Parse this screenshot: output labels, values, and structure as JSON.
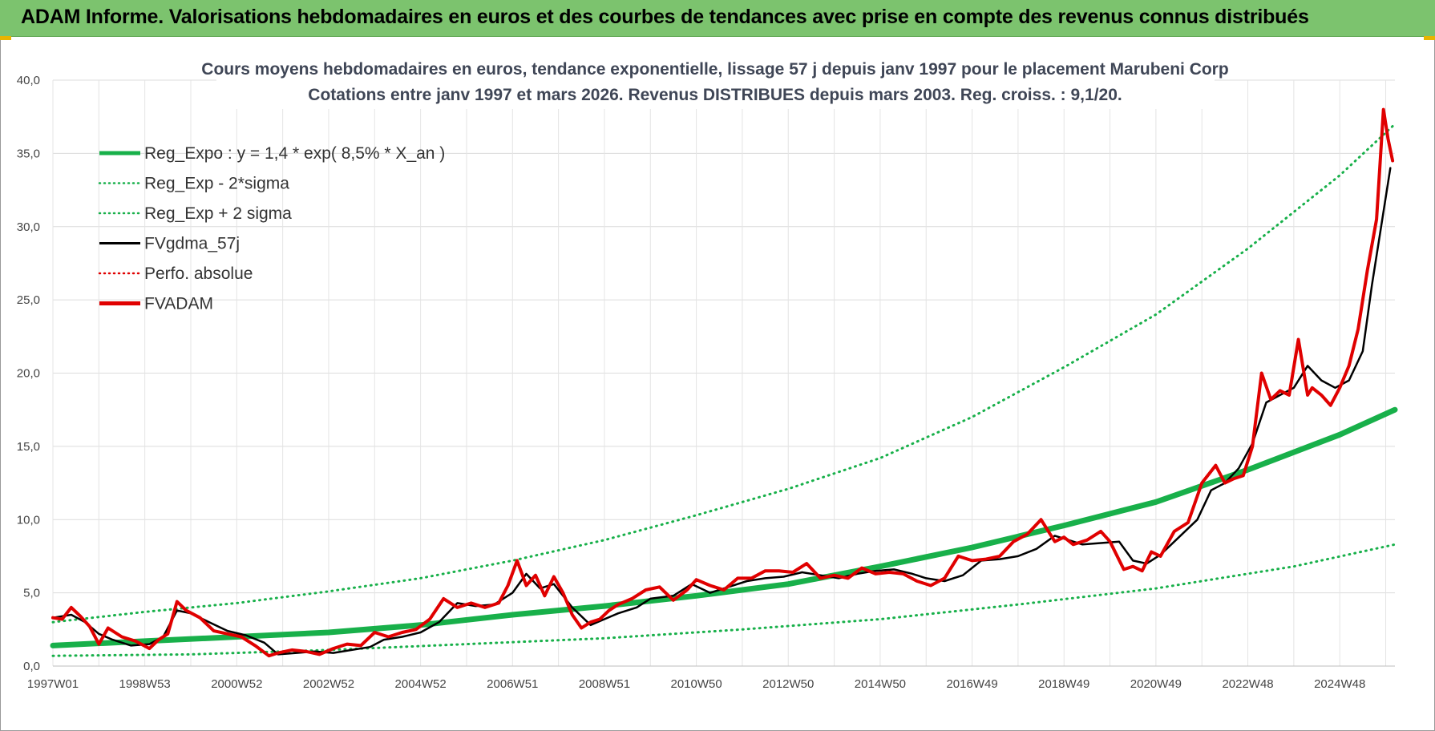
{
  "banner": {
    "title": "ADAM Informe. Valorisations hebdomadaires en euros et des courbes de tendances avec prise en compte des revenus connus distribués",
    "color": "#7cc36e"
  },
  "chart_data": {
    "type": "line",
    "title_line1": "Cours moyens hebdomadaires en euros, tendance exponentielle, lissage 57 j depuis janv 1997  pour le placement Marubeni Corp",
    "title_line2": "Cotations entre janv 1997 et mars 2026. Revenus DISTRIBUES depuis mars 2003.  Reg. croiss. : 9,1/20.",
    "xlabel": "",
    "ylabel": "",
    "ylim": [
      0,
      40
    ],
    "xlim": [
      1997.0,
      2026.2
    ],
    "y_ticks": [
      "0,0",
      "5,0",
      "10,0",
      "15,0",
      "20,0",
      "25,0",
      "30,0",
      "35,0",
      "40,0"
    ],
    "x_ticks": [
      {
        "label": "1997W01",
        "x": 1997.0
      },
      {
        "label": "1998W53",
        "x": 1999.0
      },
      {
        "label": "2000W52",
        "x": 2001.0
      },
      {
        "label": "2002W52",
        "x": 2003.0
      },
      {
        "label": "2004W52",
        "x": 2005.0
      },
      {
        "label": "2006W51",
        "x": 2007.0
      },
      {
        "label": "2008W51",
        "x": 2009.0
      },
      {
        "label": "2010W50",
        "x": 2011.0
      },
      {
        "label": "2012W50",
        "x": 2013.0
      },
      {
        "label": "2014W50",
        "x": 2015.0
      },
      {
        "label": "2016W49",
        "x": 2017.0
      },
      {
        "label": "2018W49",
        "x": 2019.0
      },
      {
        "label": "2020W49",
        "x": 2021.0
      },
      {
        "label": "2022W48",
        "x": 2023.0
      },
      {
        "label": "2024W48",
        "x": 2025.0
      }
    ],
    "grid": true,
    "legend_position": "top-left",
    "series": [
      {
        "name": "Reg_Expo : y = 1,4 * exp( 8,5% *  X_an )",
        "color": "#18b04a",
        "style": "solid-thick",
        "x": [
          1997.0,
          1999.0,
          2001.0,
          2003.0,
          2005.0,
          2007.0,
          2009.0,
          2011.0,
          2013.0,
          2015.0,
          2017.0,
          2019.0,
          2021.0,
          2023.0,
          2025.0,
          2026.2
        ],
        "y": [
          1.4,
          1.7,
          2.0,
          2.3,
          2.8,
          3.5,
          4.1,
          4.8,
          5.6,
          6.8,
          8.1,
          9.6,
          11.2,
          13.4,
          15.8,
          17.5
        ]
      },
      {
        "name": "Reg_Exp - 2*sigma",
        "color": "#18b04a",
        "style": "dotted",
        "x": [
          1997.0,
          2000.0,
          2003.0,
          2006.0,
          2009.0,
          2012.0,
          2015.0,
          2018.0,
          2021.0,
          2024.0,
          2026.2
        ],
        "y": [
          0.7,
          0.8,
          1.1,
          1.5,
          1.9,
          2.5,
          3.2,
          4.2,
          5.3,
          6.8,
          8.3
        ]
      },
      {
        "name": "Reg_Exp + 2 sigma",
        "color": "#18b04a",
        "style": "dotted",
        "x": [
          1997.0,
          1999.0,
          2001.0,
          2003.0,
          2005.0,
          2007.0,
          2009.0,
          2011.0,
          2013.0,
          2015.0,
          2017.0,
          2019.0,
          2021.0,
          2023.0,
          2025.0,
          2026.2
        ],
        "y": [
          3.0,
          3.7,
          4.3,
          5.1,
          6.0,
          7.2,
          8.6,
          10.3,
          12.1,
          14.2,
          17.0,
          20.4,
          24.0,
          28.5,
          33.5,
          37.0
        ]
      },
      {
        "name": "FVgdma_57j",
        "color": "#000000",
        "style": "solid",
        "x": [
          1997.0,
          1997.4,
          1997.7,
          1998.0,
          1998.3,
          1998.7,
          1999.1,
          1999.4,
          1999.7,
          2000.0,
          2000.4,
          2000.8,
          2001.2,
          2001.6,
          2001.9,
          2002.3,
          2002.7,
          2003.1,
          2003.5,
          2003.9,
          2004.2,
          2004.6,
          2005.0,
          2005.4,
          2005.8,
          2006.2,
          2006.6,
          2007.0,
          2007.3,
          2007.6,
          2007.9,
          2008.3,
          2008.7,
          2009.0,
          2009.3,
          2009.7,
          2010.0,
          2010.5,
          2010.9,
          2011.3,
          2011.7,
          2012.1,
          2012.5,
          2012.9,
          2013.3,
          2013.7,
          2014.1,
          2014.5,
          2014.9,
          2015.3,
          2015.7,
          2016.0,
          2016.4,
          2016.8,
          2017.2,
          2017.6,
          2018.0,
          2018.4,
          2018.8,
          2019.1,
          2019.4,
          2019.8,
          2020.2,
          2020.5,
          2020.8,
          2021.1,
          2021.5,
          2021.9,
          2022.2,
          2022.5,
          2022.8,
          2023.1,
          2023.4,
          2023.7,
          2024.0,
          2024.3,
          2024.6,
          2024.9,
          2025.2,
          2025.5,
          2025.7,
          2025.9,
          2026.1
        ],
        "y": [
          3.3,
          3.5,
          3.0,
          2.2,
          1.8,
          1.4,
          1.5,
          2.0,
          3.8,
          3.6,
          3.0,
          2.4,
          2.1,
          1.6,
          0.8,
          0.9,
          1.0,
          0.9,
          1.1,
          1.3,
          1.8,
          2.0,
          2.3,
          3.0,
          4.3,
          4.1,
          4.2,
          5.0,
          6.3,
          5.3,
          5.6,
          4.0,
          2.8,
          3.2,
          3.6,
          4.0,
          4.6,
          4.8,
          5.6,
          5.0,
          5.4,
          5.8,
          6.0,
          6.1,
          6.4,
          6.2,
          6.0,
          6.3,
          6.5,
          6.6,
          6.3,
          6.0,
          5.8,
          6.2,
          7.2,
          7.3,
          7.5,
          8.0,
          8.9,
          8.6,
          8.3,
          8.4,
          8.5,
          7.2,
          7.0,
          7.6,
          8.8,
          10.0,
          12.0,
          12.5,
          13.5,
          15.2,
          18.0,
          18.5,
          19.0,
          20.5,
          19.5,
          19.0,
          19.5,
          21.5,
          26.0,
          30.0,
          34.0
        ]
      },
      {
        "name": "Perfo. absolue",
        "color": "#e00000",
        "style": "dotted",
        "x": [],
        "y": []
      },
      {
        "name": "FVADAM",
        "color": "#e00000",
        "style": "solid-thick",
        "x": [
          1997.0,
          1997.2,
          1997.4,
          1997.6,
          1997.8,
          1998.0,
          1998.2,
          1998.5,
          1998.8,
          1999.1,
          1999.3,
          1999.5,
          1999.7,
          1999.9,
          2000.2,
          2000.5,
          2000.8,
          2001.1,
          2001.4,
          2001.7,
          2001.9,
          2002.2,
          2002.5,
          2002.8,
          2003.1,
          2003.4,
          2003.7,
          2004.0,
          2004.3,
          2004.6,
          2004.9,
          2005.2,
          2005.5,
          2005.8,
          2006.1,
          2006.4,
          2006.7,
          2006.9,
          2007.1,
          2007.3,
          2007.5,
          2007.7,
          2007.9,
          2008.1,
          2008.3,
          2008.5,
          2008.7,
          2008.9,
          2009.1,
          2009.3,
          2009.6,
          2009.9,
          2010.2,
          2010.5,
          2010.8,
          2011.0,
          2011.3,
          2011.6,
          2011.9,
          2012.2,
          2012.5,
          2012.8,
          2013.1,
          2013.4,
          2013.7,
          2014.0,
          2014.3,
          2014.6,
          2014.9,
          2015.2,
          2015.5,
          2015.8,
          2016.1,
          2016.4,
          2016.7,
          2017.0,
          2017.3,
          2017.6,
          2017.9,
          2018.2,
          2018.5,
          2018.8,
          2019.0,
          2019.2,
          2019.5,
          2019.8,
          2020.0,
          2020.3,
          2020.5,
          2020.7,
          2020.9,
          2021.1,
          2021.4,
          2021.7,
          2022.0,
          2022.3,
          2022.5,
          2022.7,
          2022.9,
          2023.1,
          2023.3,
          2023.5,
          2023.7,
          2023.9,
          2024.1,
          2024.3,
          2024.4,
          2024.6,
          2024.8,
          2025.0,
          2025.2,
          2025.4,
          2025.6,
          2025.8,
          2025.95,
          2026.05,
          2026.15
        ],
        "y": [
          3.3,
          3.2,
          4.0,
          3.4,
          2.7,
          1.5,
          2.6,
          2.0,
          1.7,
          1.2,
          1.8,
          2.2,
          4.4,
          3.8,
          3.3,
          2.4,
          2.2,
          2.0,
          1.4,
          0.7,
          0.9,
          1.1,
          1.0,
          0.8,
          1.2,
          1.5,
          1.4,
          2.3,
          2.0,
          2.3,
          2.5,
          3.2,
          4.6,
          4.0,
          4.3,
          4.0,
          4.3,
          5.5,
          7.2,
          5.5,
          6.2,
          4.8,
          6.1,
          5.0,
          3.5,
          2.6,
          3.0,
          3.2,
          3.8,
          4.2,
          4.6,
          5.2,
          5.4,
          4.5,
          5.2,
          5.9,
          5.5,
          5.2,
          6.0,
          6.0,
          6.5,
          6.5,
          6.4,
          7.0,
          6.0,
          6.2,
          6.0,
          6.7,
          6.3,
          6.4,
          6.3,
          5.8,
          5.5,
          6.0,
          7.5,
          7.2,
          7.3,
          7.5,
          8.5,
          9.0,
          10.0,
          8.5,
          8.8,
          8.3,
          8.6,
          9.2,
          8.5,
          6.6,
          6.8,
          6.5,
          7.8,
          7.5,
          9.2,
          9.8,
          12.5,
          13.7,
          12.5,
          12.8,
          13.0,
          15.0,
          20.0,
          18.2,
          18.8,
          18.5,
          22.3,
          18.5,
          19.0,
          18.5,
          17.8,
          19.0,
          20.5,
          23.0,
          27.0,
          30.5,
          38.0,
          36.0,
          34.5
        ]
      }
    ]
  }
}
